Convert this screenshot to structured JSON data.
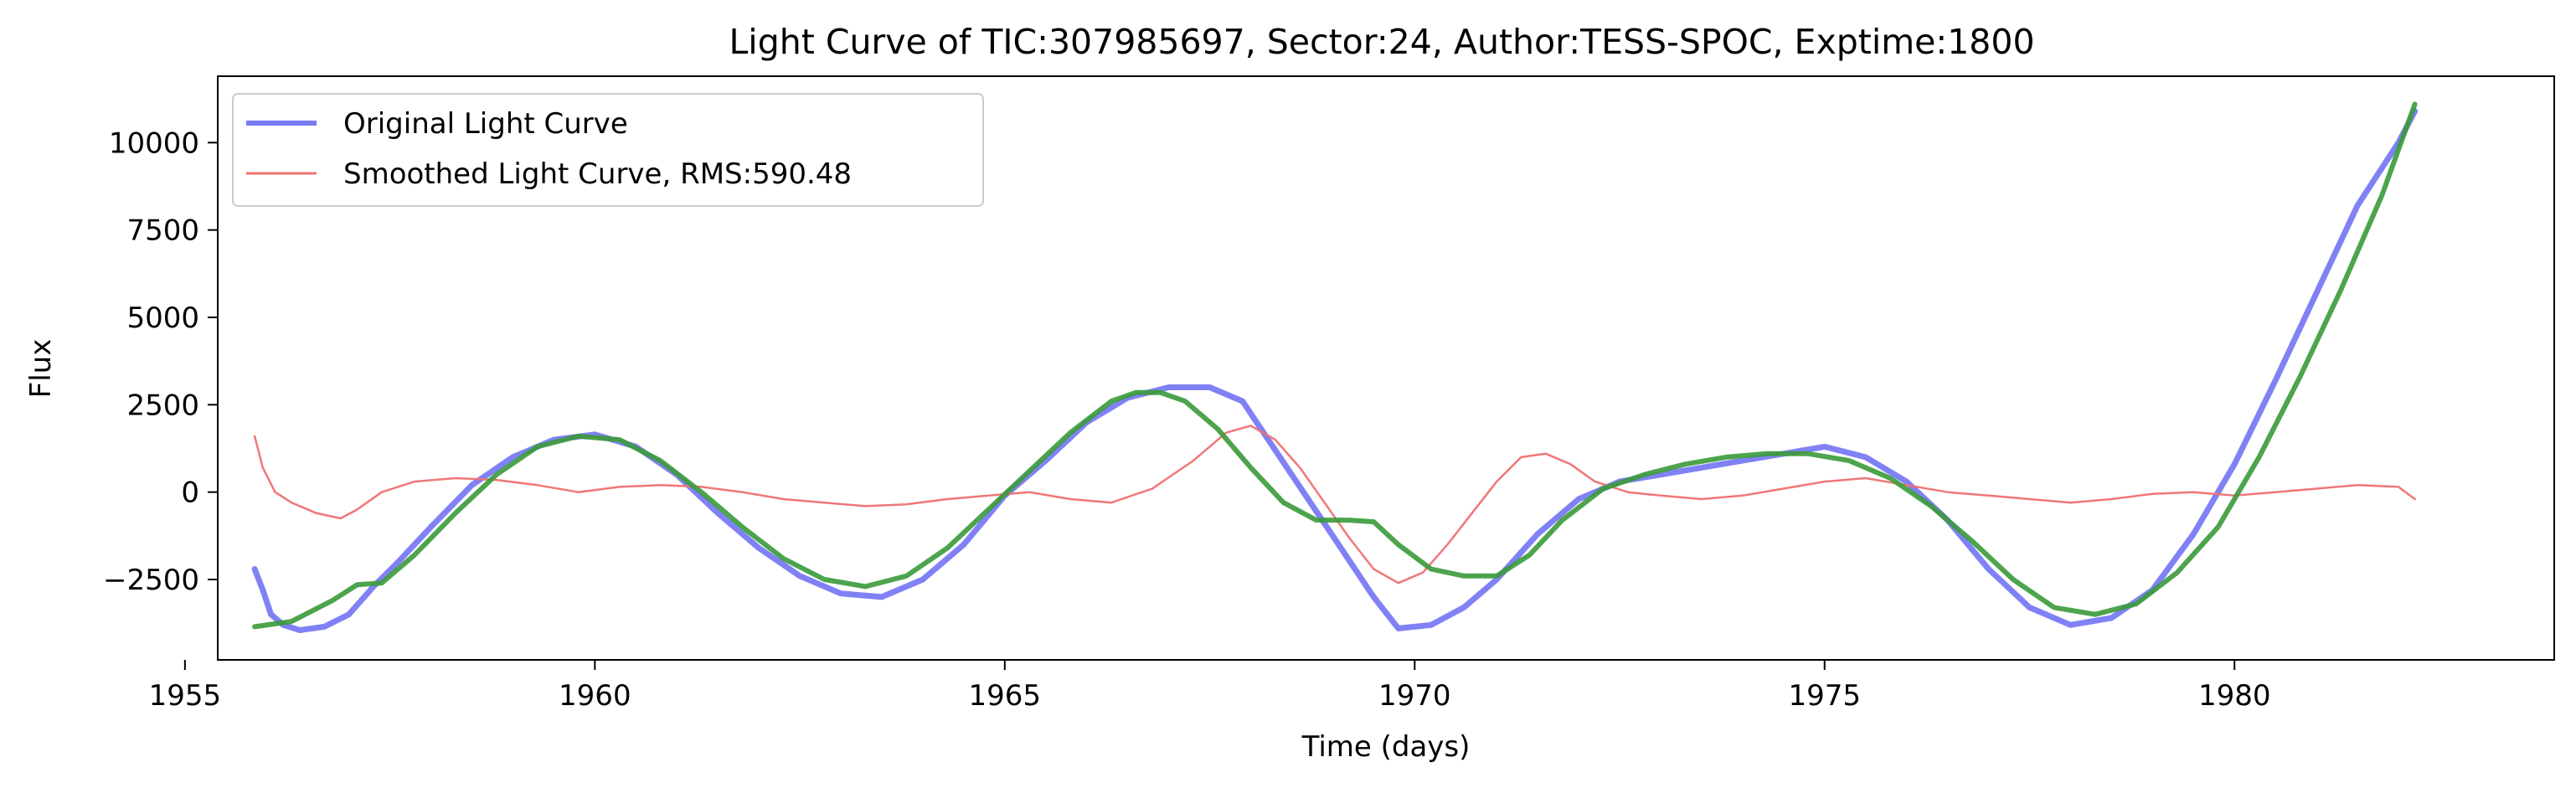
{
  "chart_data": {
    "type": "line",
    "title": "Light Curve of TIC:307985697, Sector:24, Author:TESS-SPOC, Exptime:1800",
    "xlabel": "Time (days)",
    "ylabel": "Flux",
    "xlim": [
      1955.4,
      1983.9
    ],
    "ylim": [
      -4800,
      11900
    ],
    "xticks": [
      1955,
      1960,
      1965,
      1970,
      1975,
      1980
    ],
    "yticks": [
      -2500,
      0,
      2500,
      5000,
      7500,
      10000
    ],
    "xtick_labels": [
      "1955",
      "1960",
      "1965",
      "1970",
      "1975",
      "1980"
    ],
    "ytick_labels": [
      "−2500",
      "0",
      "2500",
      "5000",
      "7500",
      "10000"
    ],
    "grid": false,
    "legend_position": "top-left",
    "series": [
      {
        "name": "Original Light Curve",
        "color": "#7a7af5",
        "x": [
          1955.85,
          1955.95,
          1956.05,
          1956.2,
          1956.4,
          1956.7,
          1957.0,
          1957.3,
          1957.6,
          1958.0,
          1958.5,
          1959.0,
          1959.5,
          1960.0,
          1960.5,
          1961.0,
          1961.5,
          1962.0,
          1962.5,
          1963.0,
          1963.5,
          1964.0,
          1964.5,
          1965.0,
          1965.5,
          1966.0,
          1966.5,
          1967.0,
          1967.5,
          1967.9,
          1968.3,
          1968.7,
          1969.1,
          1969.5,
          1969.8,
          1970.2,
          1970.6,
          1971.0,
          1971.5,
          1972.0,
          1972.5,
          1973.0,
          1973.5,
          1974.0,
          1974.5,
          1975.0,
          1975.5,
          1976.0,
          1976.5,
          1977.0,
          1977.5,
          1978.0,
          1978.5,
          1979.0,
          1979.5,
          1980.0,
          1980.5,
          1981.0,
          1981.5,
          1982.0,
          1982.2
        ],
        "y": [
          -2200,
          -2800,
          -3500,
          -3800,
          -3950,
          -3850,
          -3500,
          -2700,
          -2000,
          -1000,
          200,
          1000,
          1500,
          1650,
          1300,
          500,
          -600,
          -1600,
          -2400,
          -2900,
          -3000,
          -2500,
          -1500,
          -100,
          900,
          2000,
          2700,
          3000,
          3000,
          2600,
          1200,
          -200,
          -1600,
          -3000,
          -3900,
          -3800,
          -3300,
          -2500,
          -1200,
          -200,
          300,
          500,
          700,
          900,
          1100,
          1300,
          1000,
          300,
          -800,
          -2200,
          -3300,
          -3800,
          -3600,
          -2800,
          -1200,
          800,
          3200,
          5700,
          8200,
          10000,
          10900
        ]
      },
      {
        "name": "Smoothed Light Curve, RMS:590.48",
        "color": "#f07070",
        "x": [
          1955.85,
          1955.95,
          1956.1,
          1956.3,
          1956.6,
          1956.9,
          1957.1,
          1957.4,
          1957.8,
          1958.3,
          1958.8,
          1959.3,
          1959.8,
          1960.3,
          1960.8,
          1961.3,
          1961.8,
          1962.3,
          1962.8,
          1963.3,
          1963.8,
          1964.3,
          1964.8,
          1965.3,
          1965.8,
          1966.3,
          1966.8,
          1967.3,
          1967.7,
          1968.0,
          1968.3,
          1968.6,
          1968.9,
          1969.2,
          1969.5,
          1969.8,
          1970.1,
          1970.4,
          1970.7,
          1971.0,
          1971.3,
          1971.6,
          1971.9,
          1972.2,
          1972.6,
          1973.0,
          1973.5,
          1974.0,
          1974.5,
          1975.0,
          1975.5,
          1976.0,
          1976.5,
          1977.0,
          1977.5,
          1978.0,
          1978.5,
          1979.0,
          1979.5,
          1980.0,
          1980.5,
          1981.0,
          1981.5,
          1982.0,
          1982.2
        ],
        "y": [
          1600,
          700,
          0,
          -300,
          -600,
          -750,
          -500,
          0,
          300,
          400,
          350,
          200,
          0,
          150,
          200,
          150,
          0,
          -200,
          -300,
          -400,
          -350,
          -200,
          -100,
          0,
          -200,
          -300,
          100,
          900,
          1700,
          1900,
          1500,
          700,
          -300,
          -1300,
          -2200,
          -2600,
          -2300,
          -1500,
          -600,
          300,
          1000,
          1100,
          800,
          300,
          0,
          -100,
          -200,
          -100,
          100,
          300,
          400,
          200,
          0,
          -100,
          -200,
          -300,
          -200,
          -50,
          0,
          -100,
          0,
          100,
          200,
          150,
          -200
        ]
      },
      {
        "name": "",
        "color": "#3a9a3a",
        "x": [
          1955.85,
          1956.3,
          1956.8,
          1957.1,
          1957.4,
          1957.8,
          1958.3,
          1958.8,
          1959.3,
          1959.8,
          1960.3,
          1960.8,
          1961.3,
          1961.8,
          1962.3,
          1962.8,
          1963.3,
          1963.8,
          1964.3,
          1964.8,
          1965.3,
          1965.8,
          1966.3,
          1966.6,
          1966.9,
          1967.2,
          1967.6,
          1968.0,
          1968.4,
          1968.8,
          1969.2,
          1969.5,
          1969.8,
          1970.2,
          1970.6,
          1971.0,
          1971.4,
          1971.8,
          1972.3,
          1972.8,
          1973.3,
          1973.8,
          1974.3,
          1974.8,
          1975.3,
          1975.8,
          1976.3,
          1976.8,
          1977.3,
          1977.8,
          1978.3,
          1978.8,
          1979.3,
          1979.8,
          1980.3,
          1980.8,
          1981.3,
          1981.8,
          1982.2
        ],
        "y": [
          -3850,
          -3700,
          -3100,
          -2650,
          -2600,
          -1800,
          -600,
          500,
          1300,
          1600,
          1500,
          900,
          0,
          -1000,
          -1900,
          -2500,
          -2700,
          -2400,
          -1600,
          -500,
          600,
          1700,
          2600,
          2850,
          2850,
          2600,
          1800,
          700,
          -300,
          -800,
          -800,
          -850,
          -1500,
          -2200,
          -2400,
          -2400,
          -1800,
          -800,
          100,
          500,
          800,
          1000,
          1100,
          1100,
          900,
          400,
          -400,
          -1400,
          -2500,
          -3300,
          -3500,
          -3200,
          -2300,
          -1000,
          1000,
          3300,
          5800,
          8500,
          11100
        ]
      }
    ]
  }
}
